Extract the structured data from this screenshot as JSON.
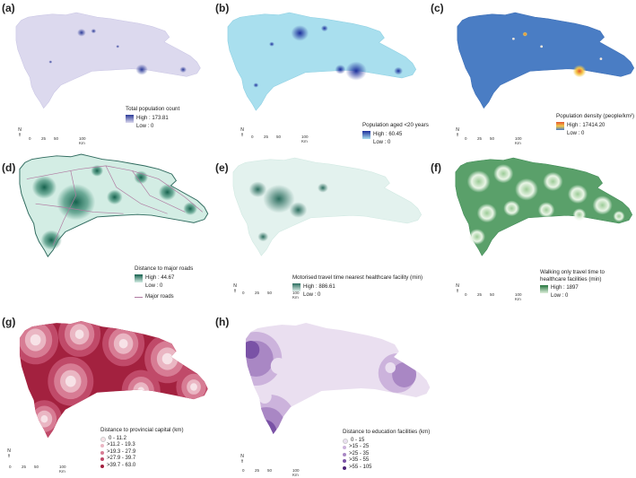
{
  "panels": [
    {
      "label": "(a)",
      "legend_title": "Total population count",
      "high": "High : 173.81",
      "low": "Low : 0",
      "base_color": "#dcd9ee",
      "high_color": "#2b3a98",
      "edge_color": "#dcd9ee"
    },
    {
      "label": "(b)",
      "legend_title": "Population aged <20 years",
      "high": "High : 60.45",
      "low": "Low : 0",
      "base_color": "#a9dfee",
      "high_color": "#1d2f9c",
      "edge_color": "#a9dfee"
    },
    {
      "label": "(c)",
      "legend_title": "Population density (people/km²)",
      "high": "High : 17414.20",
      "low": "Low : 0",
      "base_color": "#4a7dc4",
      "high_color": "#e2542e",
      "edge_color": "#4a7dc4"
    },
    {
      "label": "(d)",
      "legend_title": "Distance to major roads",
      "high": "High : 44.67",
      "low": "Low : 0",
      "roads_label": "Major roads",
      "base_color": "#d3ede4",
      "high_color": "#15614d",
      "edge_color": "#2f6a5e"
    },
    {
      "label": "(e)",
      "legend_title": "Motorised travel time nearest healthcare facility (min)",
      "high": "High : 886.61",
      "low": "Low : 0",
      "base_color": "#e3f2ee",
      "high_color": "#2c6e5f",
      "edge_color": "#cfe8e1"
    },
    {
      "label": "(f)",
      "legend_title_1": "Walking only travel time to",
      "legend_title_2": "healthcare facilities (min)",
      "high": "High : 1897",
      "low": "Low : 0",
      "base_color": "#dff0dc",
      "high_color": "#23733c",
      "edge_color": "#9ccb97"
    },
    {
      "label": "(g)",
      "legend_title": "Distance to provincial capital (km)",
      "classes": [
        "0 - 11.2",
        ">11.2 - 19.3",
        ">19.3 - 27.9",
        ">27.9 - 39.7",
        ">39.7 - 63.0"
      ],
      "class_colors": [
        "#f7e2e7",
        "#eab6c3",
        "#d77c94",
        "#c04a69",
        "#a3213f"
      ]
    },
    {
      "label": "(h)",
      "legend_title": "Distance to education facilities (km)",
      "classes": [
        "0 - 15",
        ">15 - 25",
        ">25 - 35",
        ">35 - 55",
        ">55 - 105"
      ],
      "class_colors": [
        "#eadff0",
        "#ccb3dc",
        "#a987c4",
        "#7a52a6",
        "#4c2377"
      ]
    }
  ],
  "scale": {
    "n0": "0",
    "n1": "25",
    "n2": "50",
    "n3": "100 Km",
    "north": "N"
  }
}
